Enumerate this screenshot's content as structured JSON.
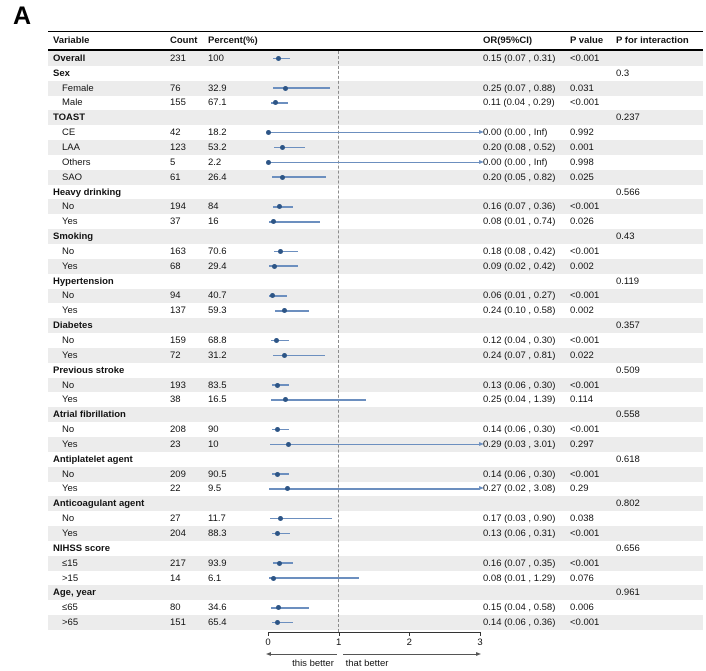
{
  "panel_label": "A",
  "colors": {
    "point": "#2d5586",
    "ci_line": "#6c8fbf",
    "stripe": "#ececec",
    "reference_dash": "#8c8c8c",
    "rule": "#000000"
  },
  "chart_data": {
    "type": "forest",
    "columns": {
      "variable": "Variable",
      "count": "Count",
      "percent": "Percent(%)",
      "or": "OR(95%CI)",
      "pvalue": "P value",
      "pinteraction": "P for interaction"
    },
    "axis": {
      "min": 0,
      "max": 3,
      "ticks": [
        0,
        1,
        2,
        3
      ],
      "reference_line": 1,
      "left_arrow_label": "this better",
      "right_arrow_label": "that better"
    },
    "rows": [
      {
        "label": "Overall",
        "level": "overall",
        "count": "231",
        "percent": "100",
        "or_text": "0.15 (0.07 , 0.31)",
        "p": "<0.001",
        "p_int": "",
        "est": 0.15,
        "lo": 0.07,
        "hi": 0.31,
        "arrow": false
      },
      {
        "label": "Sex",
        "level": "group",
        "count": "",
        "percent": "",
        "or_text": "",
        "p": "",
        "p_int": "0.3",
        "est": null
      },
      {
        "label": "Female",
        "level": "item",
        "count": "76",
        "percent": "32.9",
        "or_text": "0.25 (0.07 , 0.88)",
        "p": "0.031",
        "p_int": "",
        "est": 0.25,
        "lo": 0.07,
        "hi": 0.88,
        "arrow": false
      },
      {
        "label": "Male",
        "level": "item",
        "count": "155",
        "percent": "67.1",
        "or_text": "0.11 (0.04 , 0.29)",
        "p": "<0.001",
        "p_int": "",
        "est": 0.11,
        "lo": 0.04,
        "hi": 0.29,
        "arrow": false
      },
      {
        "label": "TOAST",
        "level": "group",
        "count": "",
        "percent": "",
        "or_text": "",
        "p": "",
        "p_int": "0.237",
        "est": null
      },
      {
        "label": "CE",
        "level": "item",
        "count": "42",
        "percent": "18.2",
        "or_text": "0.00 (0.00 , Inf)",
        "p": "0.992",
        "p_int": "",
        "est": 0.0,
        "lo": 0.0,
        "hi": null,
        "arrow": true
      },
      {
        "label": "LAA",
        "level": "item",
        "count": "123",
        "percent": "53.2",
        "or_text": "0.20 (0.08 , 0.52)",
        "p": "0.001",
        "p_int": "",
        "est": 0.2,
        "lo": 0.08,
        "hi": 0.52,
        "arrow": false
      },
      {
        "label": "Others",
        "level": "item",
        "count": "5",
        "percent": "2.2",
        "or_text": "0.00 (0.00 , Inf)",
        "p": "0.998",
        "p_int": "",
        "est": 0.0,
        "lo": 0.0,
        "hi": null,
        "arrow": true
      },
      {
        "label": "SAO",
        "level": "item",
        "count": "61",
        "percent": "26.4",
        "or_text": "0.20 (0.05 , 0.82)",
        "p": "0.025",
        "p_int": "",
        "est": 0.2,
        "lo": 0.05,
        "hi": 0.82,
        "arrow": false
      },
      {
        "label": "Heavy drinking",
        "level": "group",
        "count": "",
        "percent": "",
        "or_text": "",
        "p": "",
        "p_int": "0.566",
        "est": null
      },
      {
        "label": "No",
        "level": "item",
        "count": "194",
        "percent": "84",
        "or_text": "0.16 (0.07 , 0.36)",
        "p": "<0.001",
        "p_int": "",
        "est": 0.16,
        "lo": 0.07,
        "hi": 0.36,
        "arrow": false
      },
      {
        "label": "Yes",
        "level": "item",
        "count": "37",
        "percent": "16",
        "or_text": "0.08 (0.01 , 0.74)",
        "p": "0.026",
        "p_int": "",
        "est": 0.08,
        "lo": 0.01,
        "hi": 0.74,
        "arrow": false
      },
      {
        "label": "Smoking",
        "level": "group",
        "count": "",
        "percent": "",
        "or_text": "",
        "p": "",
        "p_int": "0.43",
        "est": null
      },
      {
        "label": "No",
        "level": "item",
        "count": "163",
        "percent": "70.6",
        "or_text": "0.18 (0.08 , 0.42)",
        "p": "<0.001",
        "p_int": "",
        "est": 0.18,
        "lo": 0.08,
        "hi": 0.42,
        "arrow": false
      },
      {
        "label": "Yes",
        "level": "item",
        "count": "68",
        "percent": "29.4",
        "or_text": "0.09 (0.02 , 0.42)",
        "p": "0.002",
        "p_int": "",
        "est": 0.09,
        "lo": 0.02,
        "hi": 0.42,
        "arrow": false
      },
      {
        "label": "Hypertension",
        "level": "group",
        "count": "",
        "percent": "",
        "or_text": "",
        "p": "",
        "p_int": "0.119",
        "est": null
      },
      {
        "label": "No",
        "level": "item",
        "count": "94",
        "percent": "40.7",
        "or_text": "0.06 (0.01 , 0.27)",
        "p": "<0.001",
        "p_int": "",
        "est": 0.06,
        "lo": 0.01,
        "hi": 0.27,
        "arrow": false
      },
      {
        "label": "Yes",
        "level": "item",
        "count": "137",
        "percent": "59.3",
        "or_text": "0.24 (0.10 , 0.58)",
        "p": "0.002",
        "p_int": "",
        "est": 0.24,
        "lo": 0.1,
        "hi": 0.58,
        "arrow": false
      },
      {
        "label": "Diabetes",
        "level": "group",
        "count": "",
        "percent": "",
        "or_text": "",
        "p": "",
        "p_int": "0.357",
        "est": null
      },
      {
        "label": "No",
        "level": "item",
        "count": "159",
        "percent": "68.8",
        "or_text": "0.12 (0.04 , 0.30)",
        "p": "<0.001",
        "p_int": "",
        "est": 0.12,
        "lo": 0.04,
        "hi": 0.3,
        "arrow": false
      },
      {
        "label": "Yes",
        "level": "item",
        "count": "72",
        "percent": "31.2",
        "or_text": "0.24 (0.07 , 0.81)",
        "p": "0.022",
        "p_int": "",
        "est": 0.24,
        "lo": 0.07,
        "hi": 0.81,
        "arrow": false
      },
      {
        "label": "Previous stroke",
        "level": "group",
        "count": "",
        "percent": "",
        "or_text": "",
        "p": "",
        "p_int": "0.509",
        "est": null
      },
      {
        "label": "No",
        "level": "item",
        "count": "193",
        "percent": "83.5",
        "or_text": "0.13 (0.06 , 0.30)",
        "p": "<0.001",
        "p_int": "",
        "est": 0.13,
        "lo": 0.06,
        "hi": 0.3,
        "arrow": false
      },
      {
        "label": "Yes",
        "level": "item",
        "count": "38",
        "percent": "16.5",
        "or_text": "0.25 (0.04 , 1.39)",
        "p": "0.114",
        "p_int": "",
        "est": 0.25,
        "lo": 0.04,
        "hi": 1.39,
        "arrow": false
      },
      {
        "label": "Atrial fibrillation",
        "level": "group",
        "count": "",
        "percent": "",
        "or_text": "",
        "p": "",
        "p_int": "0.558",
        "est": null
      },
      {
        "label": "No",
        "level": "item",
        "count": "208",
        "percent": "90",
        "or_text": "0.14 (0.06 , 0.30)",
        "p": "<0.001",
        "p_int": "",
        "est": 0.14,
        "lo": 0.06,
        "hi": 0.3,
        "arrow": false
      },
      {
        "label": "Yes",
        "level": "item",
        "count": "23",
        "percent": "10",
        "or_text": "0.29 (0.03 , 3.01)",
        "p": "0.297",
        "p_int": "",
        "est": 0.29,
        "lo": 0.03,
        "hi": 3.01,
        "arrow": true
      },
      {
        "label": "Antiplatelet agent",
        "level": "group",
        "count": "",
        "percent": "",
        "or_text": "",
        "p": "",
        "p_int": "0.618",
        "est": null
      },
      {
        "label": "No",
        "level": "item",
        "count": "209",
        "percent": "90.5",
        "or_text": "0.14 (0.06 , 0.30)",
        "p": "<0.001",
        "p_int": "",
        "est": 0.14,
        "lo": 0.06,
        "hi": 0.3,
        "arrow": false
      },
      {
        "label": "Yes",
        "level": "item",
        "count": "22",
        "percent": "9.5",
        "or_text": "0.27 (0.02 , 3.08)",
        "p": "0.29",
        "p_int": "",
        "est": 0.27,
        "lo": 0.02,
        "hi": 3.08,
        "arrow": true
      },
      {
        "label": "Anticoagulant agent",
        "level": "group",
        "count": "",
        "percent": "",
        "or_text": "",
        "p": "",
        "p_int": "0.802",
        "est": null
      },
      {
        "label": "No",
        "level": "item",
        "count": "27",
        "percent": "11.7",
        "or_text": "0.17 (0.03 , 0.90)",
        "p": "0.038",
        "p_int": "",
        "est": 0.17,
        "lo": 0.03,
        "hi": 0.9,
        "arrow": false
      },
      {
        "label": "Yes",
        "level": "item",
        "count": "204",
        "percent": "88.3",
        "or_text": "0.13 (0.06 , 0.31)",
        "p": "<0.001",
        "p_int": "",
        "est": 0.13,
        "lo": 0.06,
        "hi": 0.31,
        "arrow": false
      },
      {
        "label": "NIHSS score",
        "level": "group",
        "count": "",
        "percent": "",
        "or_text": "",
        "p": "",
        "p_int": "0.656",
        "est": null
      },
      {
        "label": "≤15",
        "level": "item",
        "count": "217",
        "percent": "93.9",
        "or_text": "0.16 (0.07 , 0.35)",
        "p": "<0.001",
        "p_int": "",
        "est": 0.16,
        "lo": 0.07,
        "hi": 0.35,
        "arrow": false
      },
      {
        "label": ">15",
        "level": "item",
        "count": "14",
        "percent": "6.1",
        "or_text": "0.08 (0.01 , 1.29)",
        "p": "0.076",
        "p_int": "",
        "est": 0.08,
        "lo": 0.01,
        "hi": 1.29,
        "arrow": false
      },
      {
        "label": "Age, year",
        "level": "group",
        "count": "",
        "percent": "",
        "or_text": "",
        "p": "",
        "p_int": "0.961",
        "est": null
      },
      {
        "label": "≤65",
        "level": "item",
        "count": "80",
        "percent": "34.6",
        "or_text": "0.15 (0.04 , 0.58)",
        "p": "0.006",
        "p_int": "",
        "est": 0.15,
        "lo": 0.04,
        "hi": 0.58,
        "arrow": false
      },
      {
        "label": ">65",
        "level": "item",
        "count": "151",
        "percent": "65.4",
        "or_text": "0.14 (0.06 , 0.36)",
        "p": "<0.001",
        "p_int": "",
        "est": 0.14,
        "lo": 0.06,
        "hi": 0.36,
        "arrow": false
      }
    ]
  }
}
